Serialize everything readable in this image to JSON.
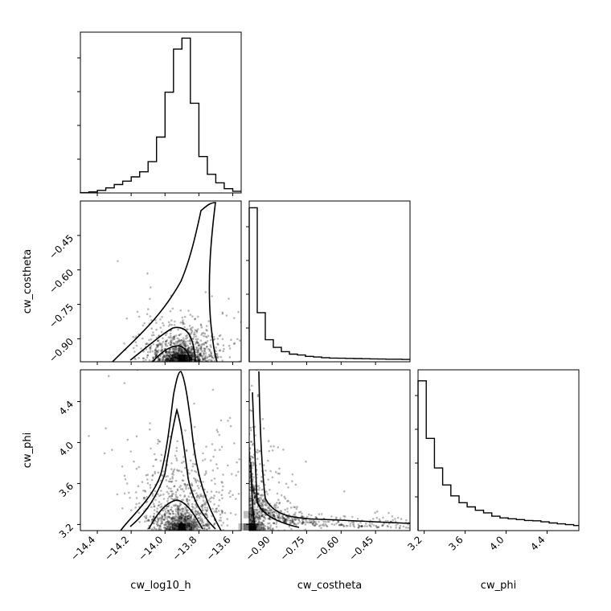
{
  "chart_data": {
    "type": "corner",
    "parameters": [
      "cw_log10_h",
      "cw_costheta",
      "cw_phi"
    ],
    "axis_labels": {
      "x": [
        "cw_log10_h",
        "cw_costheta",
        "cw_phi"
      ],
      "y": [
        "cw_costheta",
        "cw_phi"
      ]
    },
    "ranges": {
      "cw_log10_h": [
        -14.5,
        -13.55
      ],
      "cw_costheta": [
        -1.0,
        -0.3
      ],
      "cw_phi": [
        3.14,
        4.71
      ]
    },
    "ticks": {
      "cw_log10_h": {
        "values": [
          -14.4,
          -14.2,
          -14.0,
          -13.8,
          -13.6
        ],
        "labels": [
          "−14.4",
          "−14.2",
          "−14.0",
          "−13.8",
          "−13.6"
        ]
      },
      "cw_costheta": {
        "values": [
          -0.9,
          -0.75,
          -0.6,
          -0.45
        ],
        "labels": [
          "−0.90",
          "−0.75",
          "−0.60",
          "−0.45"
        ]
      },
      "cw_phi": {
        "values": [
          3.2,
          3.6,
          4.0,
          4.4
        ],
        "labels": [
          "3.2",
          "3.6",
          "4.0",
          "4.4"
        ]
      }
    },
    "histograms": [
      {
        "param": "cw_log10_h",
        "bin_edges": [
          -14.5,
          -14.45,
          -14.4,
          -14.35,
          -14.3,
          -14.25,
          -14.2,
          -14.15,
          -14.1,
          -14.05,
          -14.0,
          -13.95,
          -13.9,
          -13.85,
          -13.8,
          -13.75,
          -13.7,
          -13.65,
          -13.6,
          -13.55
        ],
        "counts": [
          0.002,
          0.006,
          0.015,
          0.03,
          0.05,
          0.07,
          0.095,
          0.125,
          0.185,
          0.33,
          0.595,
          0.85,
          0.915,
          0.53,
          0.215,
          0.11,
          0.06,
          0.025,
          0.01
        ]
      },
      {
        "param": "cw_costheta",
        "bin_edges": [
          -1.0,
          -0.965,
          -0.93,
          -0.895,
          -0.86,
          -0.825,
          -0.79,
          -0.755,
          -0.72,
          -0.685,
          -0.65,
          -0.615,
          -0.58,
          -0.545,
          -0.51,
          -0.475,
          -0.44,
          -0.405,
          -0.37,
          -0.335,
          -0.3
        ],
        "counts": [
          0.91,
          0.29,
          0.13,
          0.085,
          0.06,
          0.045,
          0.04,
          0.032,
          0.028,
          0.024,
          0.022,
          0.021,
          0.02,
          0.019,
          0.018,
          0.017,
          0.016,
          0.015,
          0.015,
          0.014
        ]
      },
      {
        "param": "cw_phi",
        "bin_edges": [
          3.14,
          3.22,
          3.3,
          3.38,
          3.46,
          3.54,
          3.62,
          3.7,
          3.78,
          3.86,
          3.94,
          4.02,
          4.1,
          4.18,
          4.26,
          4.34,
          4.42,
          4.5,
          4.58,
          4.66,
          4.71
        ],
        "counts": [
          0.885,
          0.545,
          0.37,
          0.27,
          0.205,
          0.165,
          0.14,
          0.12,
          0.105,
          0.085,
          0.075,
          0.07,
          0.065,
          0.06,
          0.058,
          0.052,
          0.045,
          0.04,
          0.035,
          0.03
        ]
      }
    ],
    "pairs": [
      {
        "x": "cw_log10_h",
        "y": "cw_costheta",
        "peak": [
          -13.9,
          -0.99
        ]
      },
      {
        "x": "cw_log10_h",
        "y": "cw_phi",
        "peak": [
          -13.9,
          3.17
        ]
      },
      {
        "x": "cw_costheta",
        "y": "cw_phi",
        "peak": [
          -0.99,
          3.17
        ]
      }
    ],
    "grid": false,
    "legend": "none"
  }
}
